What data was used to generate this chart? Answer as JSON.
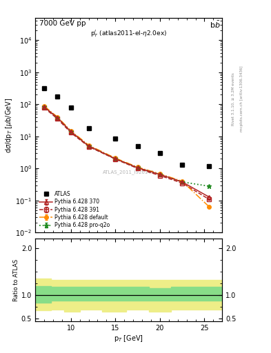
{
  "title_left": "7000 GeV pp",
  "title_right": "b$\\bar{b}$",
  "annotation": "p$_T^l$ (atlas2011-el-$\\eta$2.0ex)",
  "watermark": "ATLAS_2011_I926145",
  "ylabel_main": "d$\\sigma$/dp$_T$ [$\\mu$b/GeV]",
  "ylabel_ratio": "Ratio to ATLAS",
  "xlabel": "p$_T$ [GeV]",
  "right_label1": "Rivet 3.1.10, ≥ 3.2M events",
  "right_label2": "mcplots.cern.ch [arXiv:1306.3436]",
  "atlas_x": [
    7.0,
    8.5,
    10.0,
    12.0,
    15.0,
    17.5,
    20.0,
    22.5,
    25.5
  ],
  "atlas_y": [
    310,
    170,
    80,
    18,
    8.5,
    5.0,
    3.0,
    1.3,
    1.2
  ],
  "py370_x": [
    7.0,
    8.5,
    10.0,
    12.0,
    15.0,
    17.5,
    20.0,
    22.5,
    25.5
  ],
  "py370_y": [
    82,
    38,
    14,
    5.0,
    2.0,
    1.05,
    0.65,
    0.38,
    0.13
  ],
  "py391_x": [
    7.0,
    8.5,
    10.0,
    12.0,
    15.0,
    17.5,
    20.0,
    22.5,
    25.5
  ],
  "py391_y": [
    78,
    35,
    13,
    4.8,
    1.95,
    1.0,
    0.6,
    0.35,
    0.11
  ],
  "pydef_x": [
    7.0,
    8.5,
    10.0,
    12.0,
    15.0,
    17.5,
    20.0,
    22.5,
    25.5
  ],
  "pydef_y": [
    88,
    40,
    15,
    5.3,
    2.1,
    1.1,
    0.68,
    0.4,
    0.065
  ],
  "pyq2o_x": [
    7.0,
    8.5,
    10.0,
    12.0,
    15.0,
    17.5,
    20.0,
    22.5,
    25.5
  ],
  "pyq2o_y": [
    82,
    38,
    14,
    5.0,
    2.0,
    1.05,
    0.65,
    0.38,
    0.28
  ],
  "ratio_edges": [
    6.0,
    7.75,
    9.25,
    11.0,
    13.5,
    16.25,
    18.75,
    21.25,
    24.0,
    27.0
  ],
  "ratio_green_upper": [
    1.2,
    1.18,
    1.18,
    1.18,
    1.18,
    1.18,
    1.15,
    1.18,
    1.18
  ],
  "ratio_green_lower": [
    0.85,
    0.88,
    0.88,
    0.88,
    0.88,
    0.88,
    0.88,
    0.88,
    0.88
  ],
  "ratio_yellow_upper": [
    1.35,
    1.32,
    1.32,
    1.32,
    1.32,
    1.32,
    1.32,
    1.32,
    1.32
  ],
  "ratio_yellow_lower": [
    0.68,
    0.7,
    0.65,
    0.7,
    0.65,
    0.7,
    0.65,
    0.7,
    0.7
  ],
  "color_370": "#b22222",
  "color_391": "#b22222",
  "color_def": "#ff8c00",
  "color_q2o": "#228b22",
  "xlim": [
    6.0,
    27.0
  ],
  "ylim_main": [
    0.01,
    50000
  ],
  "ylim_ratio": [
    0.45,
    2.2
  ]
}
